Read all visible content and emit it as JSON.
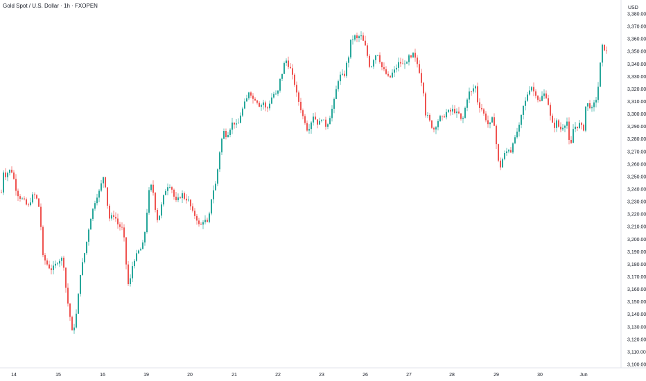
{
  "header": {
    "title": "Gold Spot / U.S. Dollar · 1h · FXOPEN"
  },
  "colors": {
    "up": "#26a69a",
    "down": "#ef5350",
    "axis_line": "#e0e3eb",
    "text": "#131722"
  },
  "chart_data": {
    "type": "candlestick",
    "title": "Gold Spot / U.S. Dollar · 1h · FXOPEN",
    "currency_label": "USD",
    "y_ticks": [
      3100,
      3110,
      3120,
      3130,
      3140,
      3150,
      3160,
      3170,
      3180,
      3190,
      3200,
      3210,
      3220,
      3230,
      3240,
      3250,
      3260,
      3270,
      3280,
      3290,
      3300,
      3310,
      3320,
      3330,
      3340,
      3350,
      3360,
      3370,
      3380
    ],
    "y_tick_labels": [
      "3,100.00",
      "3,110.00",
      "3,120.00",
      "3,130.00",
      "3,140.00",
      "3,150.00",
      "3,160.00",
      "3,170.00",
      "3,180.00",
      "3,190.00",
      "3,200.00",
      "3,210.00",
      "3,220.00",
      "3,230.00",
      "3,240.00",
      "3,250.00",
      "3,260.00",
      "3,270.00",
      "3,280.00",
      "3,290.00",
      "3,300.00",
      "3,310.00",
      "3,320.00",
      "3,330.00",
      "3,340.00",
      "3,350.00",
      "3,360.00",
      "3,370.00",
      "3,380.00"
    ],
    "ylim": [
      3098,
      3388
    ],
    "x_tick_labels": [
      "14",
      "15",
      "16",
      "19",
      "20",
      "21",
      "22",
      "23",
      "26",
      "27",
      "28",
      "29",
      "30",
      "Jun"
    ],
    "grid": false,
    "price_path": [
      [
        0,
        3228
      ],
      [
        3,
        3256
      ],
      [
        6,
        3250
      ],
      [
        11,
        3254
      ],
      [
        15,
        3256
      ],
      [
        19,
        3248
      ],
      [
        22,
        3240
      ],
      [
        26,
        3234
      ],
      [
        31,
        3232
      ],
      [
        35,
        3230
      ],
      [
        39,
        3225
      ],
      [
        44,
        3232
      ],
      [
        47,
        3236
      ],
      [
        51,
        3234
      ],
      [
        55,
        3226
      ],
      [
        58,
        3210
      ],
      [
        61,
        3186
      ],
      [
        65,
        3182
      ],
      [
        69,
        3178
      ],
      [
        73,
        3176
      ],
      [
        77,
        3178
      ],
      [
        82,
        3182
      ],
      [
        86,
        3184
      ],
      [
        90,
        3185
      ],
      [
        93,
        3166
      ],
      [
        96,
        3152
      ],
      [
        99,
        3142
      ],
      [
        103,
        3126
      ],
      [
        107,
        3132
      ],
      [
        111,
        3148
      ],
      [
        114,
        3170
      ],
      [
        117,
        3178
      ],
      [
        120,
        3186
      ],
      [
        124,
        3198
      ],
      [
        128,
        3212
      ],
      [
        131,
        3220
      ],
      [
        134,
        3226
      ],
      [
        138,
        3234
      ],
      [
        141,
        3236
      ],
      [
        145,
        3244
      ],
      [
        149,
        3252
      ],
      [
        152,
        3238
      ],
      [
        155,
        3222
      ],
      [
        158,
        3214
      ],
      [
        161,
        3220
      ],
      [
        165,
        3218
      ],
      [
        169,
        3212
      ],
      [
        172,
        3210
      ],
      [
        176,
        3208
      ],
      [
        179,
        3196
      ],
      [
        182,
        3172
      ],
      [
        185,
        3160
      ],
      [
        188,
        3172
      ],
      [
        191,
        3182
      ],
      [
        195,
        3186
      ],
      [
        198,
        3190
      ],
      [
        202,
        3192
      ],
      [
        205,
        3196
      ],
      [
        208,
        3206
      ],
      [
        211,
        3222
      ],
      [
        214,
        3238
      ],
      [
        218,
        3244
      ],
      [
        221,
        3234
      ],
      [
        224,
        3220
      ],
      [
        227,
        3214
      ],
      [
        230,
        3222
      ],
      [
        234,
        3232
      ],
      [
        237,
        3238
      ],
      [
        240,
        3242
      ],
      [
        243,
        3244
      ],
      [
        247,
        3240
      ],
      [
        250,
        3234
      ],
      [
        253,
        3230
      ],
      [
        256,
        3232
      ],
      [
        259,
        3234
      ],
      [
        262,
        3236
      ],
      [
        266,
        3232
      ],
      [
        269,
        3232
      ],
      [
        272,
        3230
      ],
      [
        275,
        3224
      ],
      [
        278,
        3220
      ],
      [
        282,
        3218
      ],
      [
        285,
        3212
      ],
      [
        288,
        3210
      ],
      [
        291,
        3214
      ],
      [
        294,
        3216
      ],
      [
        297,
        3212
      ],
      [
        300,
        3214
      ],
      [
        303,
        3230
      ],
      [
        306,
        3238
      ],
      [
        310,
        3244
      ],
      [
        313,
        3256
      ],
      [
        316,
        3270
      ],
      [
        319,
        3280
      ],
      [
        322,
        3286
      ],
      [
        326,
        3282
      ],
      [
        329,
        3286
      ],
      [
        332,
        3290
      ],
      [
        335,
        3294
      ],
      [
        338,
        3292
      ],
      [
        342,
        3290
      ],
      [
        345,
        3298
      ],
      [
        348,
        3302
      ],
      [
        351,
        3308
      ],
      [
        354,
        3310
      ],
      [
        358,
        3318
      ],
      [
        361,
        3316
      ],
      [
        364,
        3312
      ],
      [
        367,
        3312
      ],
      [
        370,
        3310
      ],
      [
        374,
        3306
      ],
      [
        377,
        3308
      ],
      [
        380,
        3310
      ],
      [
        383,
        3302
      ],
      [
        386,
        3306
      ],
      [
        390,
        3312
      ],
      [
        393,
        3316
      ],
      [
        396,
        3316
      ],
      [
        399,
        3314
      ],
      [
        402,
        3326
      ],
      [
        405,
        3330
      ],
      [
        408,
        3338
      ],
      [
        411,
        3344
      ],
      [
        414,
        3340
      ],
      [
        418,
        3336
      ],
      [
        421,
        3330
      ],
      [
        424,
        3324
      ],
      [
        427,
        3316
      ],
      [
        430,
        3310
      ],
      [
        433,
        3304
      ],
      [
        436,
        3298
      ],
      [
        439,
        3294
      ],
      [
        442,
        3288
      ],
      [
        446,
        3290
      ],
      [
        449,
        3296
      ],
      [
        452,
        3300
      ],
      [
        455,
        3294
      ],
      [
        458,
        3292
      ],
      [
        461,
        3294
      ],
      [
        464,
        3298
      ],
      [
        467,
        3292
      ],
      [
        470,
        3290
      ],
      [
        474,
        3296
      ],
      [
        477,
        3302
      ],
      [
        480,
        3308
      ],
      [
        483,
        3316
      ],
      [
        486,
        3326
      ],
      [
        489,
        3330
      ],
      [
        492,
        3332
      ],
      [
        495,
        3328
      ],
      [
        498,
        3338
      ],
      [
        502,
        3346
      ],
      [
        505,
        3358
      ],
      [
        508,
        3360
      ],
      [
        511,
        3362
      ],
      [
        514,
        3360
      ],
      [
        517,
        3362
      ],
      [
        520,
        3362
      ],
      [
        523,
        3358
      ],
      [
        526,
        3354
      ],
      [
        530,
        3344
      ],
      [
        533,
        3336
      ],
      [
        536,
        3340
      ],
      [
        539,
        3346
      ],
      [
        542,
        3348
      ],
      [
        545,
        3348
      ],
      [
        548,
        3340
      ],
      [
        551,
        3336
      ],
      [
        554,
        3334
      ],
      [
        558,
        3330
      ],
      [
        561,
        3328
      ],
      [
        564,
        3332
      ],
      [
        567,
        3334
      ],
      [
        570,
        3336
      ],
      [
        573,
        3340
      ],
      [
        576,
        3342
      ],
      [
        579,
        3338
      ],
      [
        582,
        3342
      ],
      [
        586,
        3340
      ],
      [
        589,
        3346
      ],
      [
        592,
        3344
      ],
      [
        595,
        3348
      ],
      [
        598,
        3344
      ],
      [
        601,
        3340
      ],
      [
        604,
        3334
      ],
      [
        607,
        3326
      ],
      [
        610,
        3318
      ],
      [
        613,
        3300
      ],
      [
        616,
        3298
      ],
      [
        619,
        3294
      ],
      [
        622,
        3290
      ],
      [
        625,
        3288
      ],
      [
        629,
        3292
      ],
      [
        632,
        3296
      ],
      [
        635,
        3298
      ],
      [
        638,
        3296
      ],
      [
        641,
        3300
      ],
      [
        644,
        3302
      ],
      [
        647,
        3302
      ],
      [
        650,
        3302
      ],
      [
        653,
        3304
      ],
      [
        657,
        3300
      ],
      [
        660,
        3302
      ],
      [
        663,
        3296
      ],
      [
        666,
        3294
      ],
      [
        669,
        3302
      ],
      [
        672,
        3310
      ],
      [
        675,
        3318
      ],
      [
        678,
        3316
      ],
      [
        681,
        3320
      ],
      [
        685,
        3322
      ],
      [
        688,
        3310
      ],
      [
        691,
        3306
      ],
      [
        694,
        3304
      ],
      [
        697,
        3300
      ],
      [
        700,
        3296
      ],
      [
        703,
        3292
      ],
      [
        706,
        3292
      ],
      [
        709,
        3296
      ],
      [
        712,
        3292
      ],
      [
        715,
        3276
      ],
      [
        718,
        3262
      ],
      [
        721,
        3258
      ],
      [
        724,
        3264
      ],
      [
        727,
        3268
      ],
      [
        730,
        3270
      ],
      [
        733,
        3272
      ],
      [
        736,
        3270
      ],
      [
        739,
        3278
      ],
      [
        742,
        3280
      ],
      [
        745,
        3286
      ],
      [
        748,
        3290
      ],
      [
        751,
        3298
      ],
      [
        754,
        3306
      ],
      [
        757,
        3310
      ],
      [
        760,
        3316
      ],
      [
        763,
        3320
      ],
      [
        766,
        3322
      ],
      [
        769,
        3318
      ],
      [
        772,
        3316
      ],
      [
        775,
        3312
      ],
      [
        778,
        3310
      ],
      [
        781,
        3314
      ],
      [
        784,
        3316
      ],
      [
        787,
        3314
      ],
      [
        790,
        3308
      ],
      [
        793,
        3298
      ],
      [
        796,
        3292
      ],
      [
        799,
        3290
      ],
      [
        802,
        3294
      ],
      [
        805,
        3290
      ],
      [
        808,
        3288
      ],
      [
        811,
        3290
      ],
      [
        814,
        3292
      ],
      [
        817,
        3294
      ],
      [
        820,
        3278
      ],
      [
        823,
        3276
      ],
      [
        826,
        3288
      ],
      [
        829,
        3290
      ],
      [
        832,
        3290
      ],
      [
        835,
        3292
      ],
      [
        838,
        3290
      ],
      [
        841,
        3288
      ],
      [
        844,
        3306
      ],
      [
        847,
        3308
      ],
      [
        850,
        3306
      ],
      [
        853,
        3304
      ],
      [
        856,
        3308
      ],
      [
        859,
        3312
      ],
      [
        862,
        3322
      ],
      [
        865,
        3340
      ],
      [
        868,
        3354
      ],
      [
        871,
        3352
      ],
      [
        874,
        3350
      ]
    ]
  }
}
